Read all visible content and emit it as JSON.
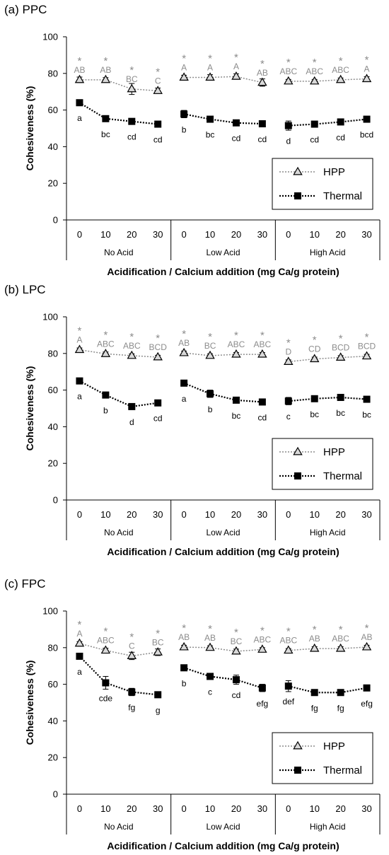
{
  "colors": {
    "hpp": "#8c8c8c",
    "thermal": "#000000",
    "axis": "#000000"
  },
  "chart_data": [
    {
      "type": "line",
      "title": "(a) PPC",
      "ylabel": "Cohesiveness (%)",
      "xlabel": "Acidification / Calcium addition (mg Ca/g protein)",
      "ylim": [
        0,
        100
      ],
      "yticks": [
        "0",
        "20",
        "40",
        "60",
        "80",
        "100"
      ],
      "groups": [
        "No Acid",
        "Low Acid",
        "High Acid"
      ],
      "categories": [
        "0",
        "10",
        "20",
        "30",
        "0",
        "10",
        "20",
        "30",
        "0",
        "10",
        "20",
        "30"
      ],
      "legend": {
        "position": "bottom-right"
      },
      "series": [
        {
          "name": "HPP",
          "marker": "triangle",
          "values": [
            76.5,
            76.5,
            71.5,
            70.5,
            77.8,
            77.8,
            78.3,
            75.0,
            75.7,
            75.7,
            76.5,
            77.0
          ],
          "errors": [
            1.5,
            1.2,
            3.0,
            1.5,
            1.2,
            1.5,
            1.5,
            2.0,
            1.0,
            1.0,
            1.0,
            1.2
          ],
          "asterisks": [
            "*",
            "*",
            "*",
            "*",
            "*",
            "*",
            "*",
            "*",
            "*",
            "*",
            "*",
            "*"
          ],
          "labels": [
            "AB",
            "AB",
            "BC",
            "C",
            "A",
            "A",
            "A",
            "AB",
            "ABC",
            "ABC",
            "ABC",
            "A"
          ]
        },
        {
          "name": "Thermal",
          "marker": "square",
          "values": [
            64.0,
            55.3,
            53.8,
            52.3,
            57.8,
            55.0,
            53.0,
            52.5,
            51.5,
            52.3,
            53.5,
            55.0
          ],
          "errors": [
            1.0,
            1.0,
            1.0,
            1.0,
            2.0,
            1.0,
            1.0,
            1.0,
            2.5,
            1.0,
            1.0,
            1.0
          ],
          "labels": [
            "a",
            "bc",
            "cd",
            "cd",
            "b",
            "bc",
            "cd",
            "cd",
            "d",
            "cd",
            "cd",
            "bcd"
          ]
        }
      ]
    },
    {
      "type": "line",
      "title": "(b) LPC",
      "ylabel": "Cohesiveness (%)",
      "xlabel": "Acidification / Calcium addition (mg Ca/g protein)",
      "ylim": [
        0,
        100
      ],
      "yticks": [
        "0",
        "20",
        "40",
        "60",
        "80",
        "100"
      ],
      "groups": [
        "No Acid",
        "Low Acid",
        "High Acid"
      ],
      "categories": [
        "0",
        "10",
        "20",
        "30",
        "0",
        "10",
        "20",
        "30",
        "0",
        "10",
        "20",
        "30"
      ],
      "legend": {
        "position": "bottom-right"
      },
      "series": [
        {
          "name": "HPP",
          "marker": "triangle",
          "values": [
            82.0,
            79.8,
            78.8,
            78.0,
            80.3,
            78.8,
            79.5,
            79.5,
            75.5,
            77.0,
            77.8,
            78.5
          ],
          "errors": [
            1.0,
            1.0,
            1.0,
            1.0,
            1.0,
            1.0,
            1.0,
            1.0,
            1.0,
            1.0,
            1.0,
            1.0
          ],
          "asterisks": [
            "*",
            "*",
            "*",
            "*",
            "*",
            "*",
            "*",
            "*",
            "*",
            "*",
            "*",
            "*"
          ],
          "labels": [
            "A",
            "ABC",
            "ABC",
            "BCD",
            "AB",
            "BC",
            "ABC",
            "ABC",
            "D",
            "CD",
            "BCD",
            "BCD"
          ]
        },
        {
          "name": "Thermal",
          "marker": "square",
          "values": [
            65.0,
            57.3,
            51.0,
            53.0,
            63.8,
            58.0,
            54.5,
            53.5,
            54.0,
            55.3,
            56.0,
            55.0
          ],
          "errors": [
            1.0,
            1.0,
            1.0,
            1.0,
            1.0,
            2.0,
            1.0,
            1.0,
            2.0,
            1.0,
            1.0,
            1.0
          ],
          "labels": [
            "a",
            "b",
            "d",
            "cd",
            "a",
            "b",
            "bc",
            "cd",
            "c",
            "bc",
            "bc",
            "bc"
          ]
        }
      ]
    },
    {
      "type": "line",
      "title": "(c) FPC",
      "ylabel": "Cohesiveness (%)",
      "xlabel": "Acidification / Calcium addition (mg Ca/g protein)",
      "ylim": [
        0,
        100
      ],
      "yticks": [
        "0",
        "20",
        "40",
        "60",
        "80",
        "100"
      ],
      "groups": [
        "No Acid",
        "Low Acid",
        "High Acid"
      ],
      "categories": [
        "0",
        "10",
        "20",
        "30",
        "0",
        "10",
        "20",
        "30",
        "0",
        "10",
        "20",
        "30"
      ],
      "legend": {
        "position": "bottom-right"
      },
      "series": [
        {
          "name": "HPP",
          "marker": "triangle",
          "values": [
            82.3,
            78.5,
            75.5,
            77.5,
            80.3,
            80.0,
            78.0,
            79.0,
            78.5,
            79.5,
            79.5,
            80.3
          ],
          "errors": [
            1.0,
            1.2,
            2.0,
            1.8,
            1.0,
            1.0,
            1.2,
            1.0,
            1.0,
            1.0,
            1.0,
            1.0
          ],
          "asterisks": [
            "*",
            "*",
            "*",
            "*",
            "*",
            "*",
            "*",
            "*",
            "*",
            "*",
            "*",
            "*"
          ],
          "labels": [
            "A",
            "ABC",
            "C",
            "BC",
            "AB",
            "AB",
            "BC",
            "ABC",
            "ABC",
            "AB",
            "ABC",
            "AB"
          ]
        },
        {
          "name": "Thermal",
          "marker": "square",
          "values": [
            75.3,
            60.8,
            55.8,
            54.3,
            69.0,
            64.3,
            62.5,
            58.0,
            59.0,
            55.5,
            55.5,
            58.0
          ],
          "errors": [
            1.5,
            3.5,
            2.0,
            1.0,
            1.0,
            1.0,
            2.5,
            2.0,
            3.0,
            1.0,
            1.0,
            1.0
          ],
          "labels": [
            "a",
            "cde",
            "fg",
            "g",
            "b",
            "c",
            "cd",
            "efg",
            "def",
            "fg",
            "fg",
            "efg"
          ]
        }
      ]
    }
  ]
}
